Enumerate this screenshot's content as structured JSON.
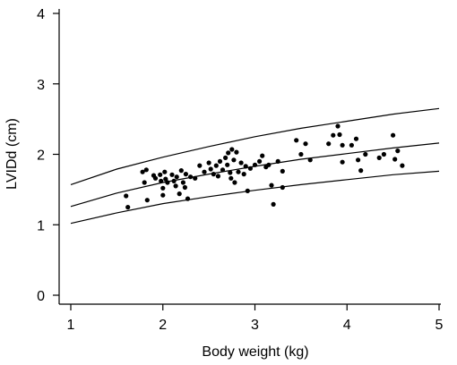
{
  "chart_data": {
    "type": "scatter",
    "title": "",
    "xlabel": "Body weight (kg)",
    "ylabel": "LVIDd (cm)",
    "xlim": [
      1,
      5
    ],
    "ylim": [
      0,
      4
    ],
    "xticks": [
      "1",
      "2",
      "3",
      "4",
      "5"
    ],
    "yticks": [
      "0",
      "1",
      "2",
      "3",
      "4"
    ],
    "grid": false,
    "legend": "none",
    "colors": {
      "points": "#000000",
      "curves": "#000000"
    },
    "curves": [
      {
        "x": [
          1.0,
          1.5,
          2.0,
          2.5,
          3.0,
          3.5,
          4.0,
          4.5,
          5.0
        ],
        "y": [
          1.57,
          1.79,
          1.96,
          2.11,
          2.25,
          2.37,
          2.47,
          2.57,
          2.65
        ]
      },
      {
        "x": [
          1.0,
          1.5,
          2.0,
          2.5,
          3.0,
          3.5,
          4.0,
          4.5,
          5.0
        ],
        "y": [
          1.26,
          1.45,
          1.6,
          1.72,
          1.83,
          1.93,
          2.01,
          2.09,
          2.16
        ]
      },
      {
        "x": [
          1.0,
          1.5,
          2.0,
          2.5,
          3.0,
          3.5,
          4.0,
          4.5,
          5.0
        ],
        "y": [
          1.02,
          1.17,
          1.3,
          1.4,
          1.49,
          1.57,
          1.64,
          1.71,
          1.76
        ]
      }
    ],
    "points": [
      {
        "x": 1.6,
        "y": 1.41
      },
      {
        "x": 1.62,
        "y": 1.25
      },
      {
        "x": 1.78,
        "y": 1.75
      },
      {
        "x": 1.8,
        "y": 1.6
      },
      {
        "x": 1.82,
        "y": 1.78
      },
      {
        "x": 1.83,
        "y": 1.35
      },
      {
        "x": 1.9,
        "y": 1.7
      },
      {
        "x": 1.92,
        "y": 1.66
      },
      {
        "x": 1.97,
        "y": 1.71
      },
      {
        "x": 1.98,
        "y": 1.62
      },
      {
        "x": 2.0,
        "y": 1.52
      },
      {
        "x": 2.0,
        "y": 1.42
      },
      {
        "x": 2.02,
        "y": 1.75
      },
      {
        "x": 2.03,
        "y": 1.65
      },
      {
        "x": 2.05,
        "y": 1.6
      },
      {
        "x": 2.1,
        "y": 1.71
      },
      {
        "x": 2.12,
        "y": 1.62
      },
      {
        "x": 2.14,
        "y": 1.55
      },
      {
        "x": 2.15,
        "y": 1.68
      },
      {
        "x": 2.18,
        "y": 1.44
      },
      {
        "x": 2.2,
        "y": 1.77
      },
      {
        "x": 2.22,
        "y": 1.6
      },
      {
        "x": 2.24,
        "y": 1.53
      },
      {
        "x": 2.25,
        "y": 1.72
      },
      {
        "x": 2.27,
        "y": 1.37
      },
      {
        "x": 2.3,
        "y": 1.68
      },
      {
        "x": 2.35,
        "y": 1.66
      },
      {
        "x": 2.4,
        "y": 1.84
      },
      {
        "x": 2.45,
        "y": 1.75
      },
      {
        "x": 2.5,
        "y": 1.88
      },
      {
        "x": 2.52,
        "y": 1.79
      },
      {
        "x": 2.55,
        "y": 1.72
      },
      {
        "x": 2.58,
        "y": 1.84
      },
      {
        "x": 2.6,
        "y": 1.69
      },
      {
        "x": 2.62,
        "y": 1.9
      },
      {
        "x": 2.65,
        "y": 1.78
      },
      {
        "x": 2.68,
        "y": 1.95
      },
      {
        "x": 2.7,
        "y": 1.85
      },
      {
        "x": 2.71,
        "y": 2.02
      },
      {
        "x": 2.73,
        "y": 1.74
      },
      {
        "x": 2.74,
        "y": 1.66
      },
      {
        "x": 2.75,
        "y": 2.07
      },
      {
        "x": 2.77,
        "y": 1.92
      },
      {
        "x": 2.78,
        "y": 1.6
      },
      {
        "x": 2.8,
        "y": 2.03
      },
      {
        "x": 2.82,
        "y": 1.75
      },
      {
        "x": 2.85,
        "y": 1.88
      },
      {
        "x": 2.88,
        "y": 1.72
      },
      {
        "x": 2.9,
        "y": 1.83
      },
      {
        "x": 2.92,
        "y": 1.48
      },
      {
        "x": 2.95,
        "y": 1.8
      },
      {
        "x": 3.0,
        "y": 1.85
      },
      {
        "x": 3.05,
        "y": 1.9
      },
      {
        "x": 3.08,
        "y": 1.98
      },
      {
        "x": 3.12,
        "y": 1.82
      },
      {
        "x": 3.15,
        "y": 1.85
      },
      {
        "x": 3.18,
        "y": 1.56
      },
      {
        "x": 3.2,
        "y": 1.29
      },
      {
        "x": 3.25,
        "y": 1.9
      },
      {
        "x": 3.3,
        "y": 1.76
      },
      {
        "x": 3.3,
        "y": 1.53
      },
      {
        "x": 3.45,
        "y": 2.2
      },
      {
        "x": 3.5,
        "y": 2.0
      },
      {
        "x": 3.55,
        "y": 2.15
      },
      {
        "x": 3.6,
        "y": 1.92
      },
      {
        "x": 3.8,
        "y": 2.15
      },
      {
        "x": 3.85,
        "y": 2.27
      },
      {
        "x": 3.9,
        "y": 2.4
      },
      {
        "x": 3.92,
        "y": 2.28
      },
      {
        "x": 3.95,
        "y": 2.13
      },
      {
        "x": 3.95,
        "y": 1.89
      },
      {
        "x": 4.05,
        "y": 2.13
      },
      {
        "x": 4.1,
        "y": 2.22
      },
      {
        "x": 4.12,
        "y": 1.92
      },
      {
        "x": 4.15,
        "y": 1.77
      },
      {
        "x": 4.2,
        "y": 2.0
      },
      {
        "x": 4.35,
        "y": 1.95
      },
      {
        "x": 4.4,
        "y": 2.0
      },
      {
        "x": 4.5,
        "y": 2.27
      },
      {
        "x": 4.52,
        "y": 1.93
      },
      {
        "x": 4.55,
        "y": 2.05
      },
      {
        "x": 4.6,
        "y": 1.84
      }
    ]
  }
}
